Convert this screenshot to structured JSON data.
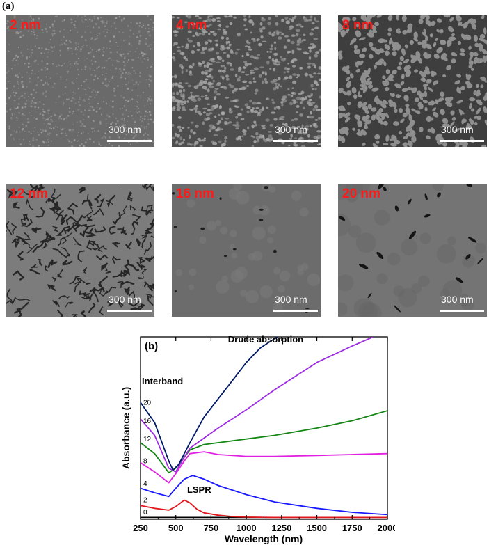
{
  "panel_a_label": "(a)",
  "panel_b_label": "(b)",
  "micrographs": [
    {
      "thickness": "2 nm",
      "scale_bar": "300 nm",
      "texture": "fine"
    },
    {
      "thickness": "4 nm",
      "scale_bar": "300 nm",
      "texture": "granular"
    },
    {
      "thickness": "8 nm",
      "scale_bar": "300 nm",
      "texture": "worm"
    },
    {
      "thickness": "12 nm",
      "scale_bar": "300 nm",
      "texture": "cracked"
    },
    {
      "thickness": "16 nm",
      "scale_bar": "300 nm",
      "texture": "holes-few"
    },
    {
      "thickness": "20 nm",
      "scale_bar": "300 nm",
      "texture": "holes-some"
    }
  ],
  "colors": {
    "text_thickness": "#ff1a1a",
    "sem_base": "#6e6e6e",
    "scale_bar": "#ffffff",
    "series": {
      "0": "#000000",
      "2": "#e0161b",
      "4": "#1a1aff",
      "8": "#e020e0",
      "12": "#138513",
      "16": "#9d2ce0",
      "20": "#001a66"
    }
  },
  "chart_data": {
    "type": "line",
    "xlabel": "Wavelength (nm)",
    "ylabel": "Absorbance (a.u.)",
    "xlim": [
      250,
      2000
    ],
    "ylim": [
      0,
      10
    ],
    "xticks": [
      250,
      500,
      750,
      1000,
      1250,
      1500,
      1750,
      2000
    ],
    "annotations": [
      {
        "text": "Drude absorption",
        "x": 870,
        "y": 9.7
      },
      {
        "text": "Interband",
        "x": 260,
        "y": 7.4
      },
      {
        "text": "LSPR",
        "x": 580,
        "y": 1.45
      }
    ],
    "series": [
      {
        "name": "0",
        "x": [
          250,
          500,
          1000,
          1500,
          2000
        ],
        "y": [
          0.1,
          0.1,
          0.1,
          0.1,
          0.1
        ]
      },
      {
        "name": "2",
        "x": [
          250,
          350,
          450,
          500,
          560,
          600,
          650,
          700,
          800,
          900,
          1000,
          1200,
          1500,
          2000
        ],
        "y": [
          0.75,
          0.6,
          0.5,
          0.7,
          1.05,
          0.9,
          0.55,
          0.35,
          0.22,
          0.15,
          0.12,
          0.1,
          0.1,
          0.1
        ]
      },
      {
        "name": "4",
        "x": [
          250,
          350,
          450,
          500,
          560,
          620,
          700,
          800,
          1000,
          1200,
          1500,
          1750,
          2000
        ],
        "y": [
          1.7,
          1.45,
          1.25,
          1.7,
          2.2,
          2.4,
          2.2,
          1.85,
          1.35,
          0.95,
          0.6,
          0.38,
          0.25
        ]
      },
      {
        "name": "8",
        "x": [
          250,
          350,
          450,
          500,
          560,
          600,
          700,
          800,
          1000,
          1200,
          1500,
          1750,
          2000
        ],
        "y": [
          3.1,
          2.6,
          2.0,
          2.5,
          3.2,
          3.6,
          3.7,
          3.55,
          3.45,
          3.45,
          3.5,
          3.55,
          3.6
        ]
      },
      {
        "name": "12",
        "x": [
          250,
          350,
          450,
          500,
          560,
          600,
          700,
          800,
          1000,
          1200,
          1500,
          1750,
          2000
        ],
        "y": [
          4.2,
          3.6,
          2.55,
          2.8,
          3.4,
          3.8,
          4.1,
          4.2,
          4.4,
          4.6,
          5.0,
          5.4,
          5.95
        ]
      },
      {
        "name": "16",
        "x": [
          250,
          350,
          450,
          500,
          560,
          600,
          700,
          800,
          1000,
          1200,
          1500,
          1750,
          1900
        ],
        "y": [
          5.5,
          4.6,
          2.8,
          2.6,
          3.4,
          3.9,
          4.45,
          5.0,
          6.0,
          7.1,
          8.6,
          9.5,
          10.0
        ]
      },
      {
        "name": "20",
        "x": [
          250,
          350,
          450,
          480,
          520,
          600,
          700,
          800,
          900,
          1000,
          1100,
          1200,
          1260
        ],
        "y": [
          6.4,
          5.3,
          3.2,
          2.7,
          3.0,
          4.2,
          5.6,
          6.6,
          7.6,
          8.6,
          9.4,
          9.9,
          10.2
        ]
      }
    ],
    "series_labels": [
      {
        "text": "20",
        "y": 6.2
      },
      {
        "text": "16",
        "y": 5.2
      },
      {
        "text": "12",
        "y": 4.2
      },
      {
        "text": "8",
        "y": 3.0
      },
      {
        "text": "4",
        "y": 1.75
      },
      {
        "text": "2",
        "y": 0.85
      },
      {
        "text": "0",
        "y": 0.2
      }
    ]
  }
}
